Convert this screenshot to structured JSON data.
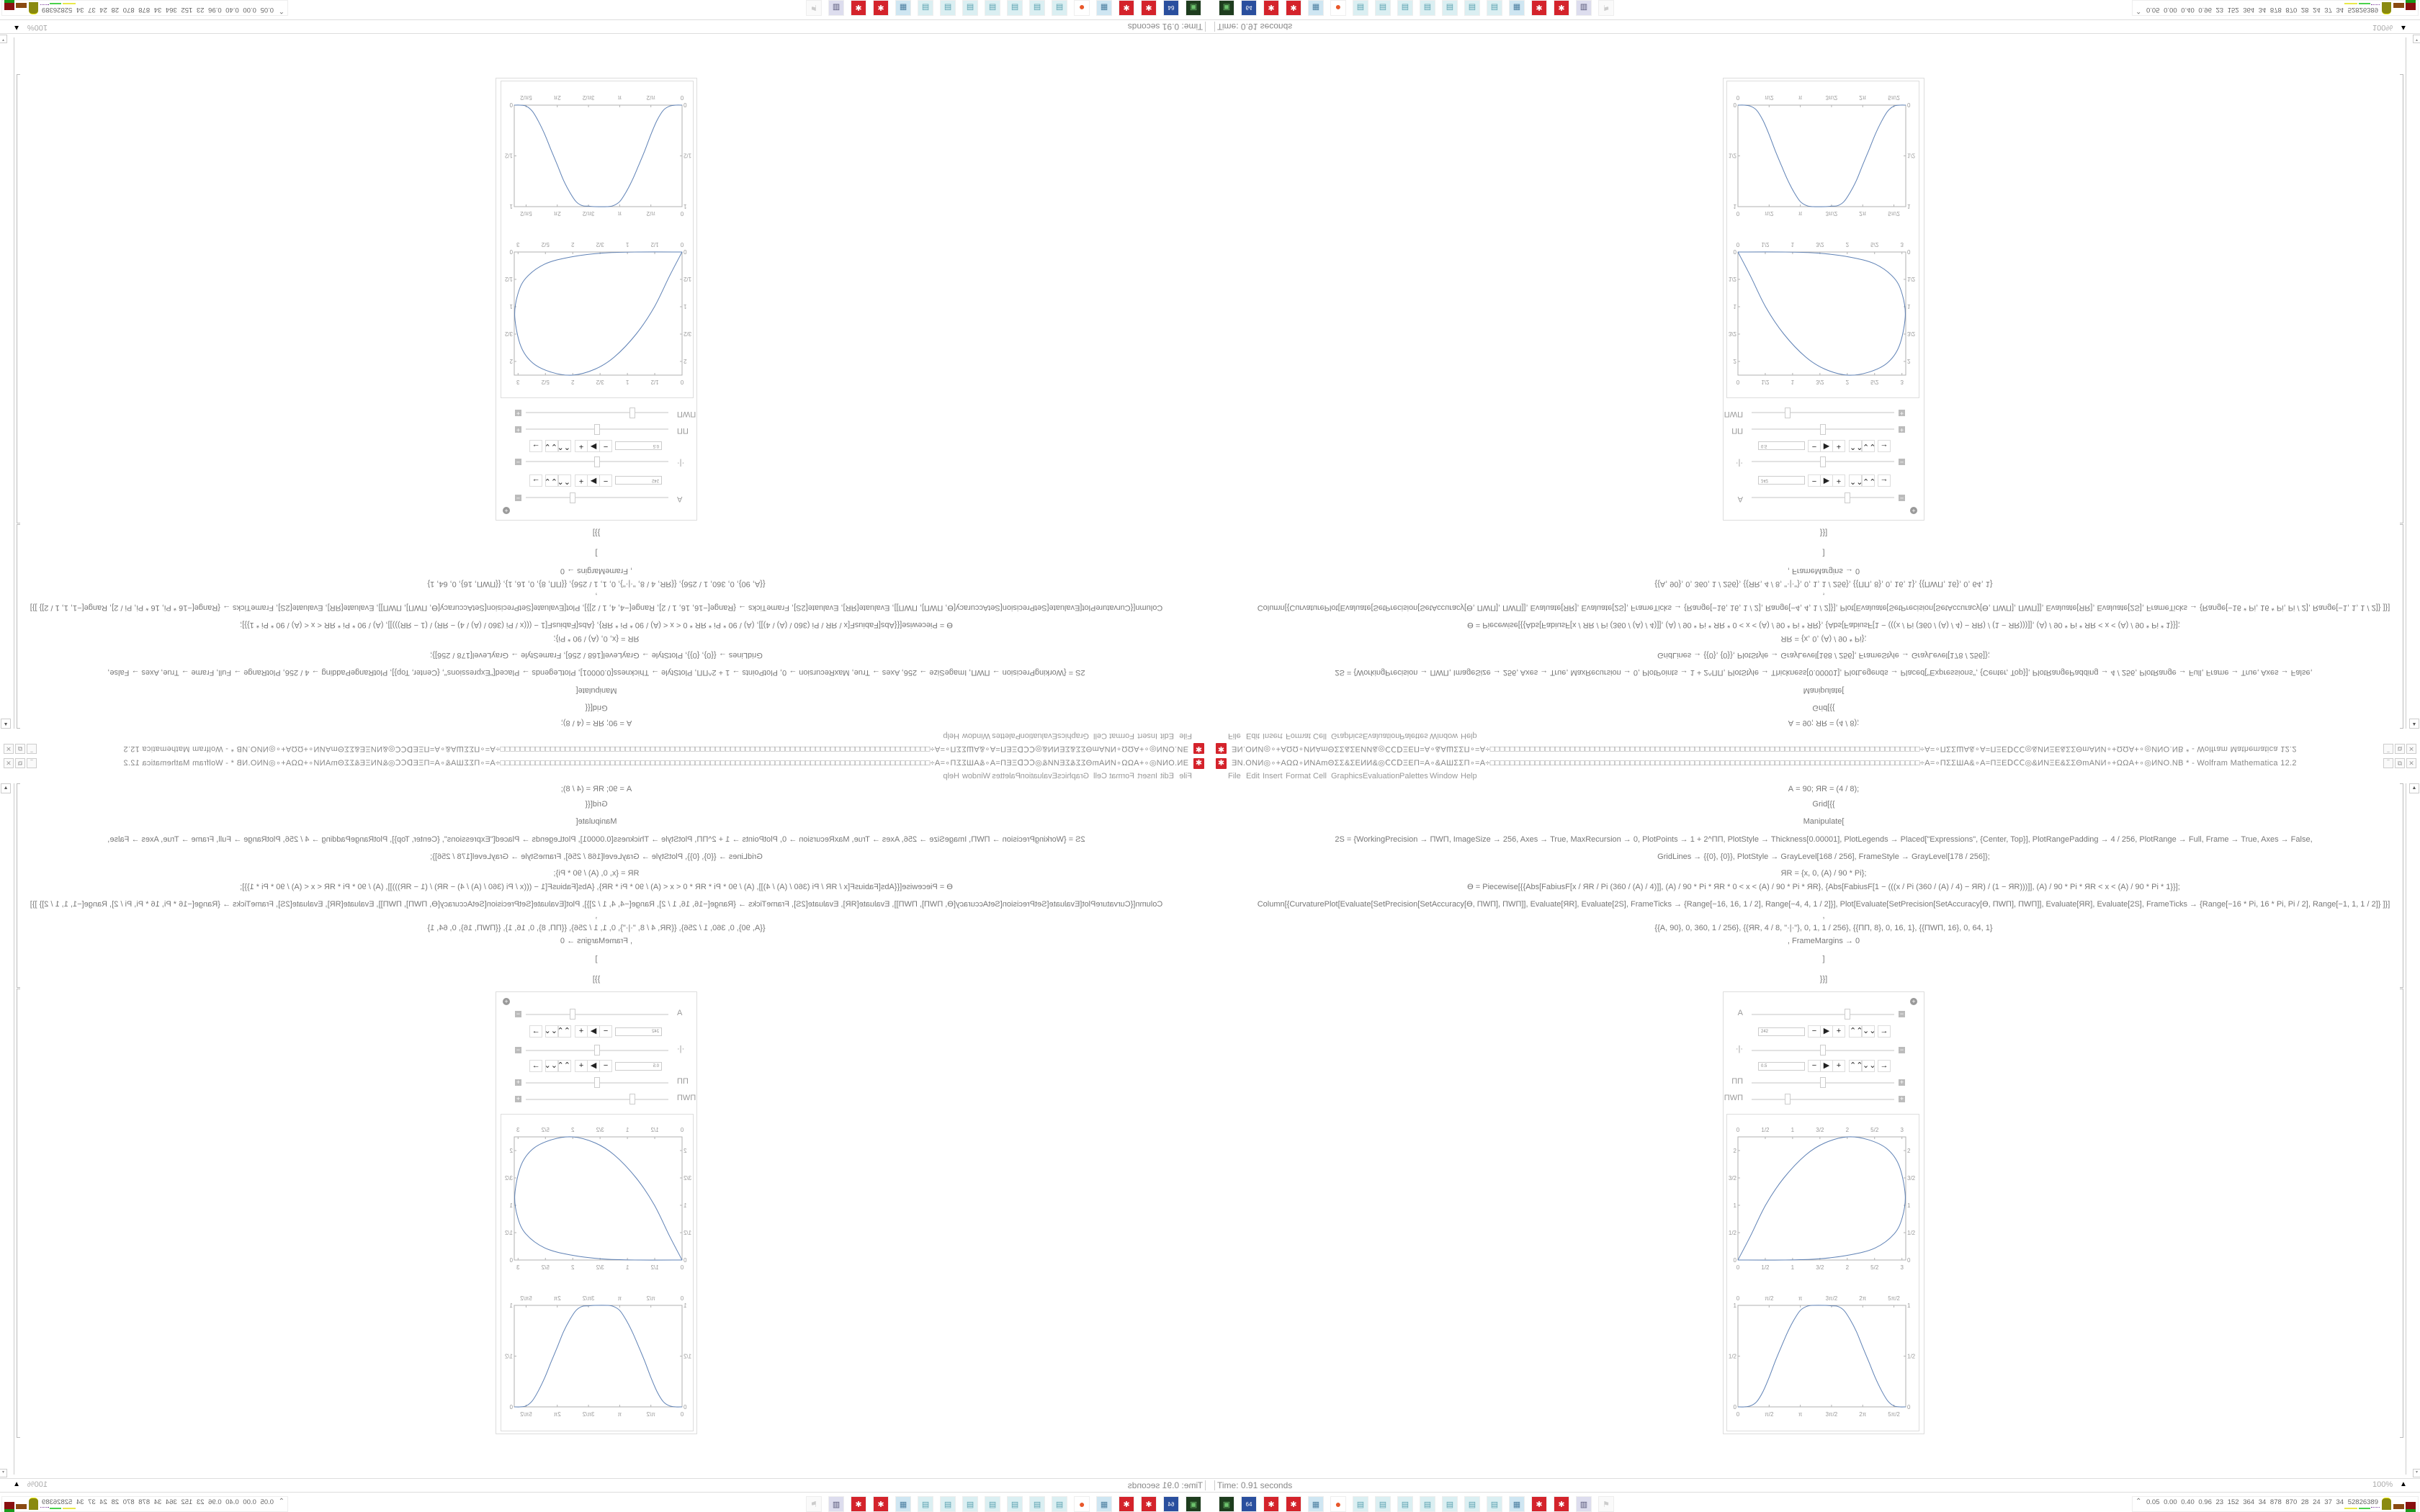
{
  "window": {
    "title": "ƎΝ.ΟΝИ◎∘+ΑΩΩ∘ИΝΑmΘΣΣ&ΣΕИИ&◎ⅭⅭⅮΞΕΠ=Α∘&ΑШΣΣΠ∘=Α÷□□□□□□□□□□□□□□□□□□□□□□□□□□□□□□□□□□□□□□□□□□□□□□□□□□□□□□□□□□□□□□□□□□□□□□□□□□□□□□□□□□□□□□÷Α=∘ΠΣΣШΑ&∘Α=ΠΞΕⅮⅭⅭ◎&ИΝΞΕ&ΣΣΘmΑΝИ∘+ΩΩΑ+∘◎ИΝΟ.ΝΒ * - Wolfram Mathematica 12.2",
    "app_icon": "wolfram-gear-icon",
    "controls": {
      "minimize": "minimize-icon",
      "restore": "restore-icon",
      "close": "close-icon"
    }
  },
  "menu": [
    "File",
    "Edit",
    "Insert",
    "Format",
    "Cell",
    "Graphics",
    "Evaluation",
    "Palettes",
    "Window",
    "Help"
  ],
  "notebook": {
    "code_lines": [
      "А = 90; ЯR = (4 / 8);",
      "Grid[{{",
      "Manipulate[",
      "2S = {WorkingPrecision → ПWП, ImageSize → 256, Axes → True, MaxRecursion → 0, PlotPoints → 1 + 2^ПП, PlotStyle → Thickness[0.00001], PlotLegends → Placed[\"Expressions\", {Center, Top}], PlotRangePadding → 4 / 256, PlotRange → Full, Frame → True, Axes → False,",
      "GridLines → {{0}, {0}}, PlotStyle → GrayLevel[168 / 256], FrameStyle → GrayLevel[178 / 256]};",
      "ЯR = {x, 0, (А) / 90 * Pi};",
      "ϴ = Piecewise[{{Abs[FabiusF[x / ЯR / Pi (360 / (А) / 4)]], (А) / 90 * Pi * ЯR * 0 < x < (А) / 90 * Pi * ЯR}, {Abs[FabiusF[1 − (((x / Pi (360 / (А) / 4) − ЯR) / (1 − ЯR)))]], (А) / 90 * Pi * ЯR < x < (А) / 90 * Pi * 1}}];",
      "Column[{CurvaturePlot[Evaluate[SetPrecision[SetAccuracy[ϴ, ПWП], ПWП]], Evaluate[ЯR], Evaluate[2S], FrameTicks → {Range[−16, 16, 1 / 2], Range[−4, 4, 1 / 2]}], Plot[Evaluate[SetPrecision[SetAccuracy[ϴ, ПWП], ПWП]], Evaluate[ЯR], Evaluate[2S], FrameTicks → {Range[−16 * Pi, 16 * Pi, Pi / 2], Range[−1, 1, 1 / 2]} ]}]",
      ",",
      "{{А, 90}, 0, 360, 1 / 256}, {{ЯR, 4 / 8, \"·|·\"}, 0, 1, 1 / 256}, {{ПП, 8}, 0, 16, 1}, {{ПWП, 16}, 0, 64, 1}",
      ", FrameMargins → 0",
      "]",
      "}}]"
    ]
  },
  "manipulate": {
    "controls": [
      {
        "label": "А",
        "value": 242,
        "min": 0,
        "max": 360,
        "field": "242",
        "expanded": true
      },
      {
        "label": "·|·",
        "value": 0.5,
        "min": 0,
        "max": 1,
        "field": "0.5",
        "expanded": true
      },
      {
        "label": "ПП",
        "value": 8,
        "min": 0,
        "max": 16,
        "expanded": false
      },
      {
        "label": "ПWП",
        "value": 16,
        "min": 0,
        "max": 64,
        "expanded": false
      }
    ],
    "anim_buttons": [
      "−",
      "▶",
      "+",
      "⌃⌃",
      "⌄⌄",
      "→"
    ]
  },
  "chart_data": [
    {
      "type": "line",
      "xlim": [
        0,
        3.07
      ],
      "ylim": [
        0,
        2.25
      ],
      "x_ticks": [
        [
          0,
          "0"
        ],
        [
          0.5,
          "1/2"
        ],
        [
          1,
          "1"
        ],
        [
          1.5,
          "3/2"
        ],
        [
          2,
          "2"
        ],
        [
          2.5,
          "5/2"
        ],
        [
          3,
          "3"
        ]
      ],
      "y_ticks": [
        [
          0,
          "0"
        ],
        [
          0.5,
          "1/2"
        ],
        [
          1,
          "1"
        ],
        [
          1.5,
          "3/2"
        ],
        [
          2,
          "2"
        ]
      ],
      "frame": true,
      "color": "#5e81b5",
      "points": [
        [
          0,
          0
        ],
        [
          0.23,
          0.44
        ],
        [
          0.51,
          1.01
        ],
        [
          0.84,
          1.5
        ],
        [
          1.24,
          1.92
        ],
        [
          1.59,
          2.14
        ],
        [
          2.0,
          2.25
        ],
        [
          2.38,
          2.2
        ],
        [
          2.73,
          2.03
        ],
        [
          2.95,
          1.72
        ],
        [
          3.06,
          1.19
        ],
        [
          3.01,
          0.79
        ],
        [
          2.86,
          0.48
        ],
        [
          2.51,
          0.22
        ],
        [
          2.03,
          0.09
        ],
        [
          1.46,
          0.02
        ],
        [
          0.8,
          0.0
        ],
        [
          0,
          0
        ]
      ]
    },
    {
      "type": "line",
      "xlim": [
        0,
        8.45
      ],
      "ylim": [
        0,
        1
      ],
      "x_ticks": [
        [
          0,
          "0"
        ],
        [
          1.5708,
          "π/2"
        ],
        [
          3.1416,
          "π"
        ],
        [
          4.7124,
          "3π/2"
        ],
        [
          6.2832,
          "2π"
        ],
        [
          7.854,
          "5π/2"
        ]
      ],
      "y_ticks": [
        [
          0,
          "0"
        ],
        [
          0.5,
          "1/2"
        ],
        [
          1,
          "1"
        ]
      ],
      "frame": true,
      "color": "#5e81b5",
      "points": [
        [
          0,
          0
        ],
        [
          0.31,
          0
        ],
        [
          0.63,
          0.01
        ],
        [
          0.94,
          0.05
        ],
        [
          1.26,
          0.15
        ],
        [
          1.57,
          0.29
        ],
        [
          1.88,
          0.45
        ],
        [
          2.2,
          0.6
        ],
        [
          2.51,
          0.74
        ],
        [
          2.83,
          0.86
        ],
        [
          3.14,
          0.95
        ],
        [
          3.46,
          0.99
        ],
        [
          3.77,
          1
        ],
        [
          4.4,
          1
        ],
        [
          4.71,
          0.995
        ],
        [
          5.03,
          0.99
        ],
        [
          5.34,
          0.95
        ],
        [
          5.65,
          0.86
        ],
        [
          5.97,
          0.74
        ],
        [
          6.28,
          0.59
        ],
        [
          6.6,
          0.44
        ],
        [
          6.91,
          0.29
        ],
        [
          7.23,
          0.16
        ],
        [
          7.54,
          0.06
        ],
        [
          7.85,
          0.01
        ],
        [
          8.17,
          0
        ],
        [
          8.45,
          0
        ]
      ]
    }
  ],
  "status": {
    "time": "Time: 0.91 seconds",
    "zoom": "100%"
  },
  "taskbar": {
    "icons": [
      "terminal",
      "floppy-64",
      "wolfram-gear",
      "wolfram-gear",
      "calculator",
      "firefox",
      "notepad",
      "notepad",
      "notepad",
      "notepad",
      "notepad",
      "notepad",
      "notepad",
      "calculator",
      "wolfram-gear",
      "wolfram-gear",
      "printer",
      "flag"
    ],
    "tray_text": "0.05 0.00 0.40 0.96 23 152 364 34 878 870 28 24 37 34 52826389"
  }
}
